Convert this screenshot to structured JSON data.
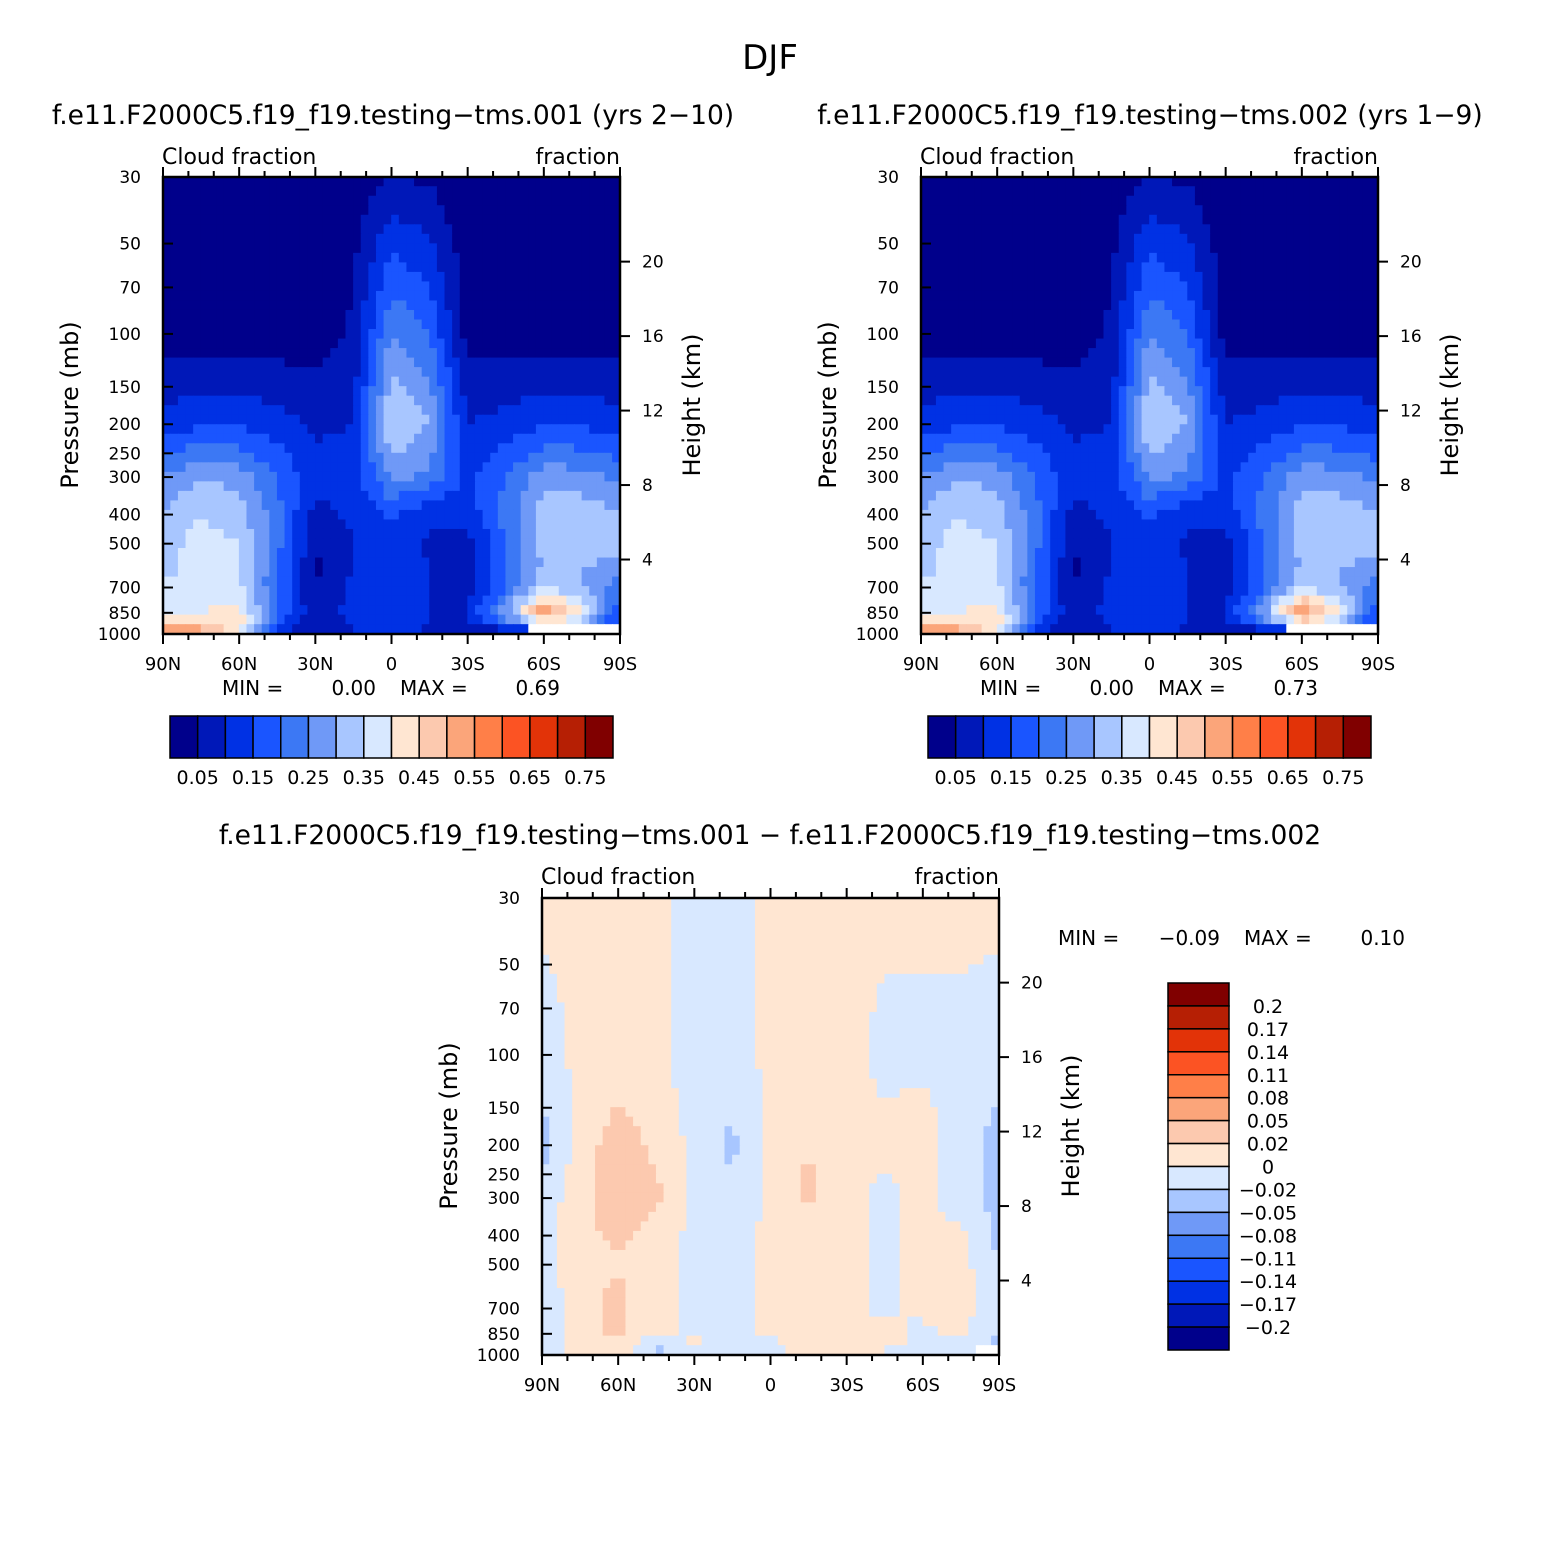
{
  "page_title": "DJF",
  "chart_data": [
    {
      "type": "heatmap",
      "title": "f.e11.F2000C5.f19_f19.testing−tms.001 (yrs 2−10)",
      "left_subtitle": "Cloud fraction",
      "right_subtitle": "fraction",
      "ylabel": "Pressure (mb)",
      "ylabel_right": "Height (km)",
      "x_ticks": [
        "90N",
        "60N",
        "30N",
        "0",
        "30S",
        "60S",
        "90S"
      ],
      "y_ticks": [
        "30",
        "50",
        "70",
        "100",
        "150",
        "200",
        "250",
        "300",
        "400",
        "500",
        "700",
        "850",
        "1000"
      ],
      "height_ticks": [
        "20",
        "16",
        "12",
        "8",
        "4"
      ],
      "ylim": [
        1000,
        30
      ],
      "y_scale": "log",
      "min_text": "MIN =",
      "min_value": "0.00",
      "max_text": "MAX =",
      "max_value": "0.69",
      "colorbar_labels": [
        "0.05",
        "0.15",
        "0.25",
        "0.35",
        "0.45",
        "0.55",
        "0.65",
        "0.75"
      ],
      "colorbar_levels": [
        0.05,
        0.1,
        0.15,
        0.2,
        0.25,
        0.3,
        0.35,
        0.4,
        0.45,
        0.5,
        0.55,
        0.6,
        0.65,
        0.7,
        0.75
      ],
      "colors": [
        "#00008b",
        "#0018b8",
        "#0031e4",
        "#1a55ff",
        "#3c78f4",
        "#6f99f7",
        "#a8c6ff",
        "#d8e8ff",
        "#ffe6d2",
        "#fcc9af",
        "#fba57a",
        "#ff7f48",
        "#fc5323",
        "#e23308",
        "#b61f04",
        "#800000"
      ],
      "grid": {
        "lat": [
          90,
          75,
          60,
          45,
          30,
          15,
          0,
          -15,
          -30,
          -45,
          -60,
          -75,
          -90
        ],
        "pressure": [
          30,
          100,
          200,
          300,
          400,
          500,
          600,
          700,
          850,
          925,
          1000
        ],
        "values": [
          [
            0.01,
            0.01,
            0.01,
            0.01,
            0.01,
            0.02,
            0.05,
            0.04,
            0.01,
            0.01,
            0.01,
            0.01,
            0.01
          ],
          [
            0.02,
            0.02,
            0.02,
            0.02,
            0.02,
            0.06,
            0.25,
            0.2,
            0.03,
            0.02,
            0.02,
            0.02,
            0.02
          ],
          [
            0.12,
            0.14,
            0.14,
            0.12,
            0.09,
            0.1,
            0.36,
            0.3,
            0.1,
            0.12,
            0.14,
            0.14,
            0.12
          ],
          [
            0.25,
            0.3,
            0.28,
            0.2,
            0.12,
            0.12,
            0.26,
            0.24,
            0.13,
            0.2,
            0.28,
            0.27,
            0.24
          ],
          [
            0.3,
            0.35,
            0.32,
            0.22,
            0.08,
            0.11,
            0.16,
            0.11,
            0.12,
            0.22,
            0.32,
            0.33,
            0.3
          ],
          [
            0.33,
            0.37,
            0.35,
            0.22,
            0.06,
            0.1,
            0.14,
            0.09,
            0.08,
            0.2,
            0.32,
            0.34,
            0.32
          ],
          [
            0.34,
            0.36,
            0.35,
            0.21,
            0.04,
            0.1,
            0.14,
            0.1,
            0.08,
            0.2,
            0.3,
            0.3,
            0.28
          ],
          [
            0.36,
            0.36,
            0.36,
            0.2,
            0.05,
            0.11,
            0.12,
            0.1,
            0.08,
            0.2,
            0.35,
            0.3,
            0.22
          ],
          [
            0.38,
            0.4,
            0.42,
            0.2,
            0.06,
            0.12,
            0.11,
            0.1,
            0.1,
            0.28,
            0.55,
            0.4,
            0.16
          ],
          [
            0.44,
            0.46,
            0.45,
            0.18,
            0.05,
            0.11,
            0.12,
            0.1,
            0.08,
            0.2,
            0.4,
            0.32,
            0.12
          ],
          [
            0.6,
            0.55,
            0.38,
            0.08,
            0.05,
            0.09,
            0.11,
            0.09,
            0.05,
            0.03,
            0.0,
            0.0,
            0.0
          ]
        ]
      }
    },
    {
      "type": "heatmap",
      "title": "f.e11.F2000C5.f19_f19.testing−tms.002 (yrs 1−9)",
      "left_subtitle": "Cloud fraction",
      "right_subtitle": "fraction",
      "ylabel": "Pressure (mb)",
      "ylabel_right": "Height (km)",
      "x_ticks": [
        "90N",
        "60N",
        "30N",
        "0",
        "30S",
        "60S",
        "90S"
      ],
      "y_ticks": [
        "30",
        "50",
        "70",
        "100",
        "150",
        "200",
        "250",
        "300",
        "400",
        "500",
        "700",
        "850",
        "1000"
      ],
      "height_ticks": [
        "20",
        "16",
        "12",
        "8",
        "4"
      ],
      "ylim": [
        1000,
        30
      ],
      "y_scale": "log",
      "min_text": "MIN =",
      "min_value": "0.00",
      "max_text": "MAX =",
      "max_value": "0.73",
      "colorbar_labels": [
        "0.05",
        "0.15",
        "0.25",
        "0.35",
        "0.45",
        "0.55",
        "0.65",
        "0.75"
      ],
      "colorbar_levels": [
        0.05,
        0.1,
        0.15,
        0.2,
        0.25,
        0.3,
        0.35,
        0.4,
        0.45,
        0.5,
        0.55,
        0.6,
        0.65,
        0.7,
        0.75
      ],
      "colors": [
        "#00008b",
        "#0018b8",
        "#0031e4",
        "#1a55ff",
        "#3c78f4",
        "#6f99f7",
        "#a8c6ff",
        "#d8e8ff",
        "#ffe6d2",
        "#fcc9af",
        "#fba57a",
        "#ff7f48",
        "#fc5323",
        "#e23308",
        "#b61f04",
        "#800000"
      ],
      "grid": {
        "lat": [
          90,
          75,
          60,
          45,
          30,
          15,
          0,
          -15,
          -30,
          -45,
          -60,
          -75,
          -90
        ],
        "pressure": [
          30,
          100,
          200,
          300,
          400,
          500,
          600,
          700,
          850,
          925,
          1000
        ],
        "values": [
          [
            0.01,
            0.01,
            0.01,
            0.01,
            0.01,
            0.02,
            0.05,
            0.04,
            0.01,
            0.01,
            0.01,
            0.01,
            0.01
          ],
          [
            0.02,
            0.02,
            0.02,
            0.02,
            0.02,
            0.06,
            0.25,
            0.2,
            0.03,
            0.02,
            0.02,
            0.02,
            0.02
          ],
          [
            0.12,
            0.14,
            0.14,
            0.12,
            0.09,
            0.1,
            0.36,
            0.3,
            0.1,
            0.12,
            0.14,
            0.14,
            0.12
          ],
          [
            0.25,
            0.3,
            0.28,
            0.2,
            0.12,
            0.12,
            0.26,
            0.24,
            0.13,
            0.2,
            0.28,
            0.27,
            0.24
          ],
          [
            0.3,
            0.35,
            0.32,
            0.22,
            0.08,
            0.11,
            0.16,
            0.11,
            0.12,
            0.22,
            0.32,
            0.33,
            0.3
          ],
          [
            0.33,
            0.37,
            0.35,
            0.22,
            0.06,
            0.1,
            0.14,
            0.09,
            0.08,
            0.2,
            0.32,
            0.34,
            0.32
          ],
          [
            0.34,
            0.36,
            0.35,
            0.21,
            0.04,
            0.1,
            0.14,
            0.1,
            0.08,
            0.2,
            0.3,
            0.3,
            0.28
          ],
          [
            0.36,
            0.36,
            0.36,
            0.2,
            0.05,
            0.11,
            0.12,
            0.1,
            0.08,
            0.2,
            0.35,
            0.3,
            0.22
          ],
          [
            0.38,
            0.4,
            0.42,
            0.2,
            0.06,
            0.12,
            0.11,
            0.1,
            0.1,
            0.28,
            0.57,
            0.4,
            0.16
          ],
          [
            0.44,
            0.46,
            0.45,
            0.18,
            0.05,
            0.11,
            0.12,
            0.1,
            0.08,
            0.2,
            0.4,
            0.32,
            0.12
          ],
          [
            0.62,
            0.55,
            0.38,
            0.08,
            0.05,
            0.09,
            0.11,
            0.09,
            0.05,
            0.03,
            0.0,
            0.0,
            0.0
          ]
        ]
      }
    },
    {
      "type": "heatmap",
      "title": "f.e11.F2000C5.f19_f19.testing−tms.001 − f.e11.F2000C5.f19_f19.testing−tms.002",
      "left_subtitle": "Cloud fraction",
      "right_subtitle": "fraction",
      "ylabel": "Pressure (mb)",
      "ylabel_right": "Height (km)",
      "x_ticks": [
        "90N",
        "60N",
        "30N",
        "0",
        "30S",
        "60S",
        "90S"
      ],
      "y_ticks": [
        "30",
        "50",
        "70",
        "100",
        "150",
        "200",
        "250",
        "300",
        "400",
        "500",
        "700",
        "850",
        "1000"
      ],
      "height_ticks": [
        "20",
        "16",
        "12",
        "8",
        "4"
      ],
      "ylim": [
        1000,
        30
      ],
      "y_scale": "log",
      "min_text": "MIN =",
      "min_value": "−0.09",
      "max_text": "MAX =",
      "max_value": "0.10",
      "colorbar_labels": [
        "0.2",
        "0.17",
        "0.14",
        "0.11",
        "0.08",
        "0.05",
        "0.02",
        "0",
        "−0.02",
        "−0.05",
        "−0.08",
        "−0.11",
        "−0.14",
        "−0.17",
        "−0.2"
      ],
      "colorbar_levels": [
        -0.2,
        -0.17,
        -0.14,
        -0.11,
        -0.08,
        -0.05,
        -0.02,
        0,
        0.02,
        0.05,
        0.08,
        0.11,
        0.14,
        0.17,
        0.2
      ],
      "colors": [
        "#00008b",
        "#0018b8",
        "#0031e4",
        "#1a55ff",
        "#3c78f4",
        "#6f99f7",
        "#a8c6ff",
        "#d8e8ff",
        "#ffe6d2",
        "#fcc9af",
        "#fba57a",
        "#ff7f48",
        "#fc5323",
        "#e23308",
        "#b61f04",
        "#800000"
      ],
      "grid": {
        "lat": [
          90,
          75,
          60,
          45,
          30,
          15,
          0,
          -15,
          -30,
          -45,
          -60,
          -75,
          -90
        ],
        "pressure": [
          30,
          100,
          200,
          300,
          400,
          500,
          600,
          700,
          850,
          925,
          1000
        ],
        "values": [
          [
            0.005,
            0.005,
            0.005,
            0.005,
            -0.005,
            -0.005,
            0.005,
            0.005,
            0.005,
            0.005,
            0.005,
            0.005,
            0.005
          ],
          [
            -0.01,
            0.005,
            0.01,
            0.005,
            -0.01,
            -0.01,
            0.005,
            0.01,
            0.005,
            -0.005,
            -0.005,
            -0.005,
            -0.01
          ],
          [
            -0.03,
            0.01,
            0.03,
            0.015,
            -0.005,
            -0.025,
            0.005,
            0.02,
            0.005,
            0.005,
            0.01,
            -0.01,
            -0.03
          ],
          [
            -0.01,
            0.01,
            0.035,
            0.025,
            -0.005,
            -0.015,
            0.005,
            0.025,
            0.005,
            -0.005,
            0.005,
            -0.01,
            -0.03
          ],
          [
            -0.01,
            0.015,
            0.025,
            0.01,
            -0.005,
            -0.01,
            0.005,
            0.01,
            0.005,
            -0.005,
            0.005,
            0.005,
            -0.025
          ],
          [
            -0.01,
            0.015,
            0.015,
            0.005,
            -0.005,
            -0.01,
            0.005,
            0.01,
            0.005,
            -0.005,
            0.01,
            0.005,
            -0.02
          ],
          [
            -0.01,
            0.01,
            0.025,
            0.005,
            -0.005,
            -0.01,
            0.005,
            0.005,
            0.005,
            -0.005,
            0.005,
            0.015,
            -0.02
          ],
          [
            -0.01,
            0.01,
            0.025,
            0.005,
            -0.005,
            -0.01,
            0.005,
            0.005,
            0.005,
            -0.005,
            0.005,
            0.01,
            -0.02
          ],
          [
            -0.01,
            0.01,
            0.025,
            0.005,
            -0.005,
            -0.01,
            0.005,
            0.005,
            0.01,
            0.005,
            -0.005,
            0.005,
            -0.02
          ],
          [
            -0.015,
            0.005,
            0.01,
            -0.02,
            0.005,
            -0.005,
            -0.005,
            0.005,
            0.005,
            0.005,
            -0.005,
            -0.005,
            -0.025
          ],
          [
            -0.01,
            0.01,
            0.03,
            -0.025,
            -0.005,
            -0.005,
            -0.005,
            0.005,
            0.005,
            -0.005,
            -0.005,
            -0.025,
            -0.03
          ]
        ]
      }
    }
  ]
}
